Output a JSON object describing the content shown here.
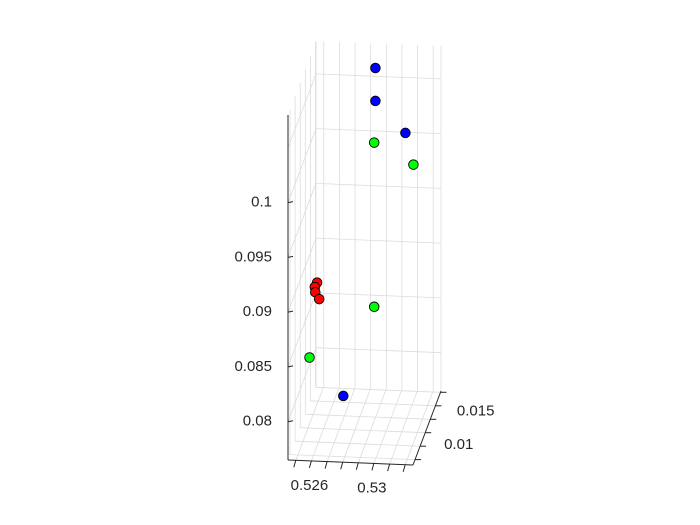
{
  "chart_data": {
    "type": "scatter",
    "projection": "3d",
    "z_ticks": [
      "0.08",
      "0.085",
      "0.09",
      "0.095",
      "0.1"
    ],
    "x_ticks": [
      "0.526",
      "0.53"
    ],
    "y_ticks": [
      "0.01",
      "0.015"
    ],
    "grid": true,
    "series": [
      {
        "color": "#ff0000",
        "points": [
          {
            "x": 0.5255,
            "y": 0.0125,
            "z": 0.0895
          },
          {
            "x": 0.5253,
            "y": 0.0128,
            "z": 0.0889
          },
          {
            "x": 0.5253,
            "y": 0.013,
            "z": 0.0883
          },
          {
            "x": 0.5255,
            "y": 0.0133,
            "z": 0.0875
          }
        ]
      },
      {
        "color": "#00ff00",
        "points": [
          {
            "x": 0.5255,
            "y": 0.0095,
            "z": 0.0845
          },
          {
            "x": 0.5285,
            "y": 0.0165,
            "z": 0.085
          },
          {
            "x": 0.5285,
            "y": 0.0165,
            "z": 0.1
          },
          {
            "x": 0.5315,
            "y": 0.0135,
            "z": 0.1
          }
        ]
      },
      {
        "color": "#0000ff",
        "points": [
          {
            "x": 0.5275,
            "y": 0.0105,
            "z": 0.0805
          },
          {
            "x": 0.5285,
            "y": 0.017,
            "z": 0.1065
          },
          {
            "x": 0.5285,
            "y": 0.017,
            "z": 0.1035
          },
          {
            "x": 0.5305,
            "y": 0.0165,
            "z": 0.101
          }
        ]
      }
    ]
  }
}
